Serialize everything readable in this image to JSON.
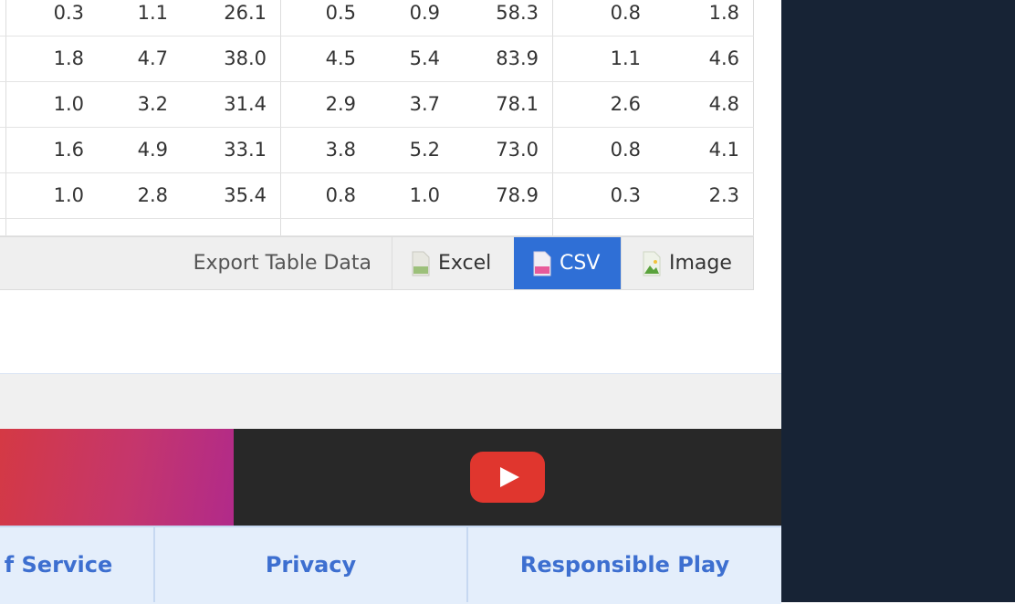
{
  "table": {
    "rows": [
      [
        "0.3",
        "1.1",
        "26.1",
        "0.5",
        "0.9",
        "58.3",
        "0.8",
        "1.8"
      ],
      [
        "1.8",
        "4.7",
        "38.0",
        "4.5",
        "5.4",
        "83.9",
        "1.1",
        "4.6"
      ],
      [
        "1.0",
        "3.2",
        "31.4",
        "2.9",
        "3.7",
        "78.1",
        "2.6",
        "4.8"
      ],
      [
        "1.6",
        "4.9",
        "33.1",
        "3.8",
        "5.2",
        "73.0",
        "0.8",
        "4.1"
      ],
      [
        "1.0",
        "2.8",
        "35.4",
        "0.8",
        "1.0",
        "78.9",
        "0.3",
        "2.3"
      ]
    ]
  },
  "export": {
    "label": "Export Table Data",
    "excel": "Excel",
    "csv": "CSV",
    "image": "Image",
    "icons": [
      "excel-file-icon",
      "csv-file-icon",
      "image-file-icon"
    ],
    "active_color": "#2f6fd6"
  },
  "media": {
    "video_icon": "youtube-play-icon"
  },
  "footer": {
    "links": [
      "f Service",
      "Privacy",
      "Responsible Play"
    ],
    "link_color": "#3d6fd0"
  },
  "colors": {
    "sidebar": "#172335",
    "footer_bg": "#e4eefb"
  }
}
